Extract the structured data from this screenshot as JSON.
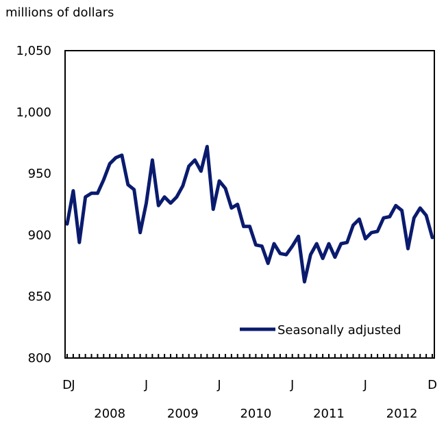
{
  "chart_data": {
    "type": "line",
    "title": "",
    "unit_label": "millions of dollars",
    "ylabel": "",
    "xlabel": "",
    "ylim": [
      800,
      1050
    ],
    "yticks": [
      800,
      850,
      900,
      950,
      1000,
      1050
    ],
    "ytick_labels": [
      "800",
      "850",
      "900",
      "950",
      "1,000",
      "1,050"
    ],
    "x_start": "2007-12",
    "x_end": "2012-12",
    "x_tick_labels": [
      {
        "month": "2007-12",
        "label": "D"
      },
      {
        "month": "2008-01",
        "label": "J"
      },
      {
        "month": "2009-01",
        "label": "J"
      },
      {
        "month": "2010-01",
        "label": "J"
      },
      {
        "month": "2011-01",
        "label": "J"
      },
      {
        "month": "2012-01",
        "label": "J"
      },
      {
        "month": "2012-12",
        "label": "D"
      }
    ],
    "year_labels": [
      {
        "month": "2008-07",
        "label": "2008"
      },
      {
        "month": "2009-07",
        "label": "2009"
      },
      {
        "month": "2010-07",
        "label": "2010"
      },
      {
        "month": "2011-07",
        "label": "2011"
      },
      {
        "month": "2012-07",
        "label": "2012"
      }
    ],
    "grid": false,
    "legend_position": "bottom-right",
    "series": [
      {
        "name": "Seasonally adjusted",
        "color": "#0a1b6e",
        "x": [
          "2007-12",
          "2008-01",
          "2008-02",
          "2008-03",
          "2008-04",
          "2008-05",
          "2008-06",
          "2008-07",
          "2008-08",
          "2008-09",
          "2008-10",
          "2008-11",
          "2008-12",
          "2009-01",
          "2009-02",
          "2009-03",
          "2009-04",
          "2009-05",
          "2009-06",
          "2009-07",
          "2009-08",
          "2009-09",
          "2009-10",
          "2009-11",
          "2009-12",
          "2010-01",
          "2010-02",
          "2010-03",
          "2010-04",
          "2010-05",
          "2010-06",
          "2010-07",
          "2010-08",
          "2010-09",
          "2010-10",
          "2010-11",
          "2010-12",
          "2011-01",
          "2011-02",
          "2011-03",
          "2011-04",
          "2011-05",
          "2011-06",
          "2011-07",
          "2011-08",
          "2011-09",
          "2011-10",
          "2011-11",
          "2011-12",
          "2012-01",
          "2012-02",
          "2012-03",
          "2012-04",
          "2012-05",
          "2012-06",
          "2012-07",
          "2012-08",
          "2012-09",
          "2012-10",
          "2012-11",
          "2012-12"
        ],
        "values": [
          909,
          936,
          894,
          931,
          934,
          934,
          945,
          958,
          963,
          965,
          941,
          937,
          902,
          926,
          961,
          924,
          931,
          926,
          931,
          940,
          956,
          961,
          952,
          972,
          921,
          944,
          938,
          922,
          925,
          907,
          907,
          892,
          891,
          877,
          893,
          885,
          884,
          891,
          899,
          862,
          884,
          893,
          881,
          893,
          882,
          893,
          894,
          908,
          913,
          897,
          902,
          903,
          914,
          915,
          924,
          920,
          889,
          914,
          922,
          916,
          898
        ]
      }
    ]
  }
}
